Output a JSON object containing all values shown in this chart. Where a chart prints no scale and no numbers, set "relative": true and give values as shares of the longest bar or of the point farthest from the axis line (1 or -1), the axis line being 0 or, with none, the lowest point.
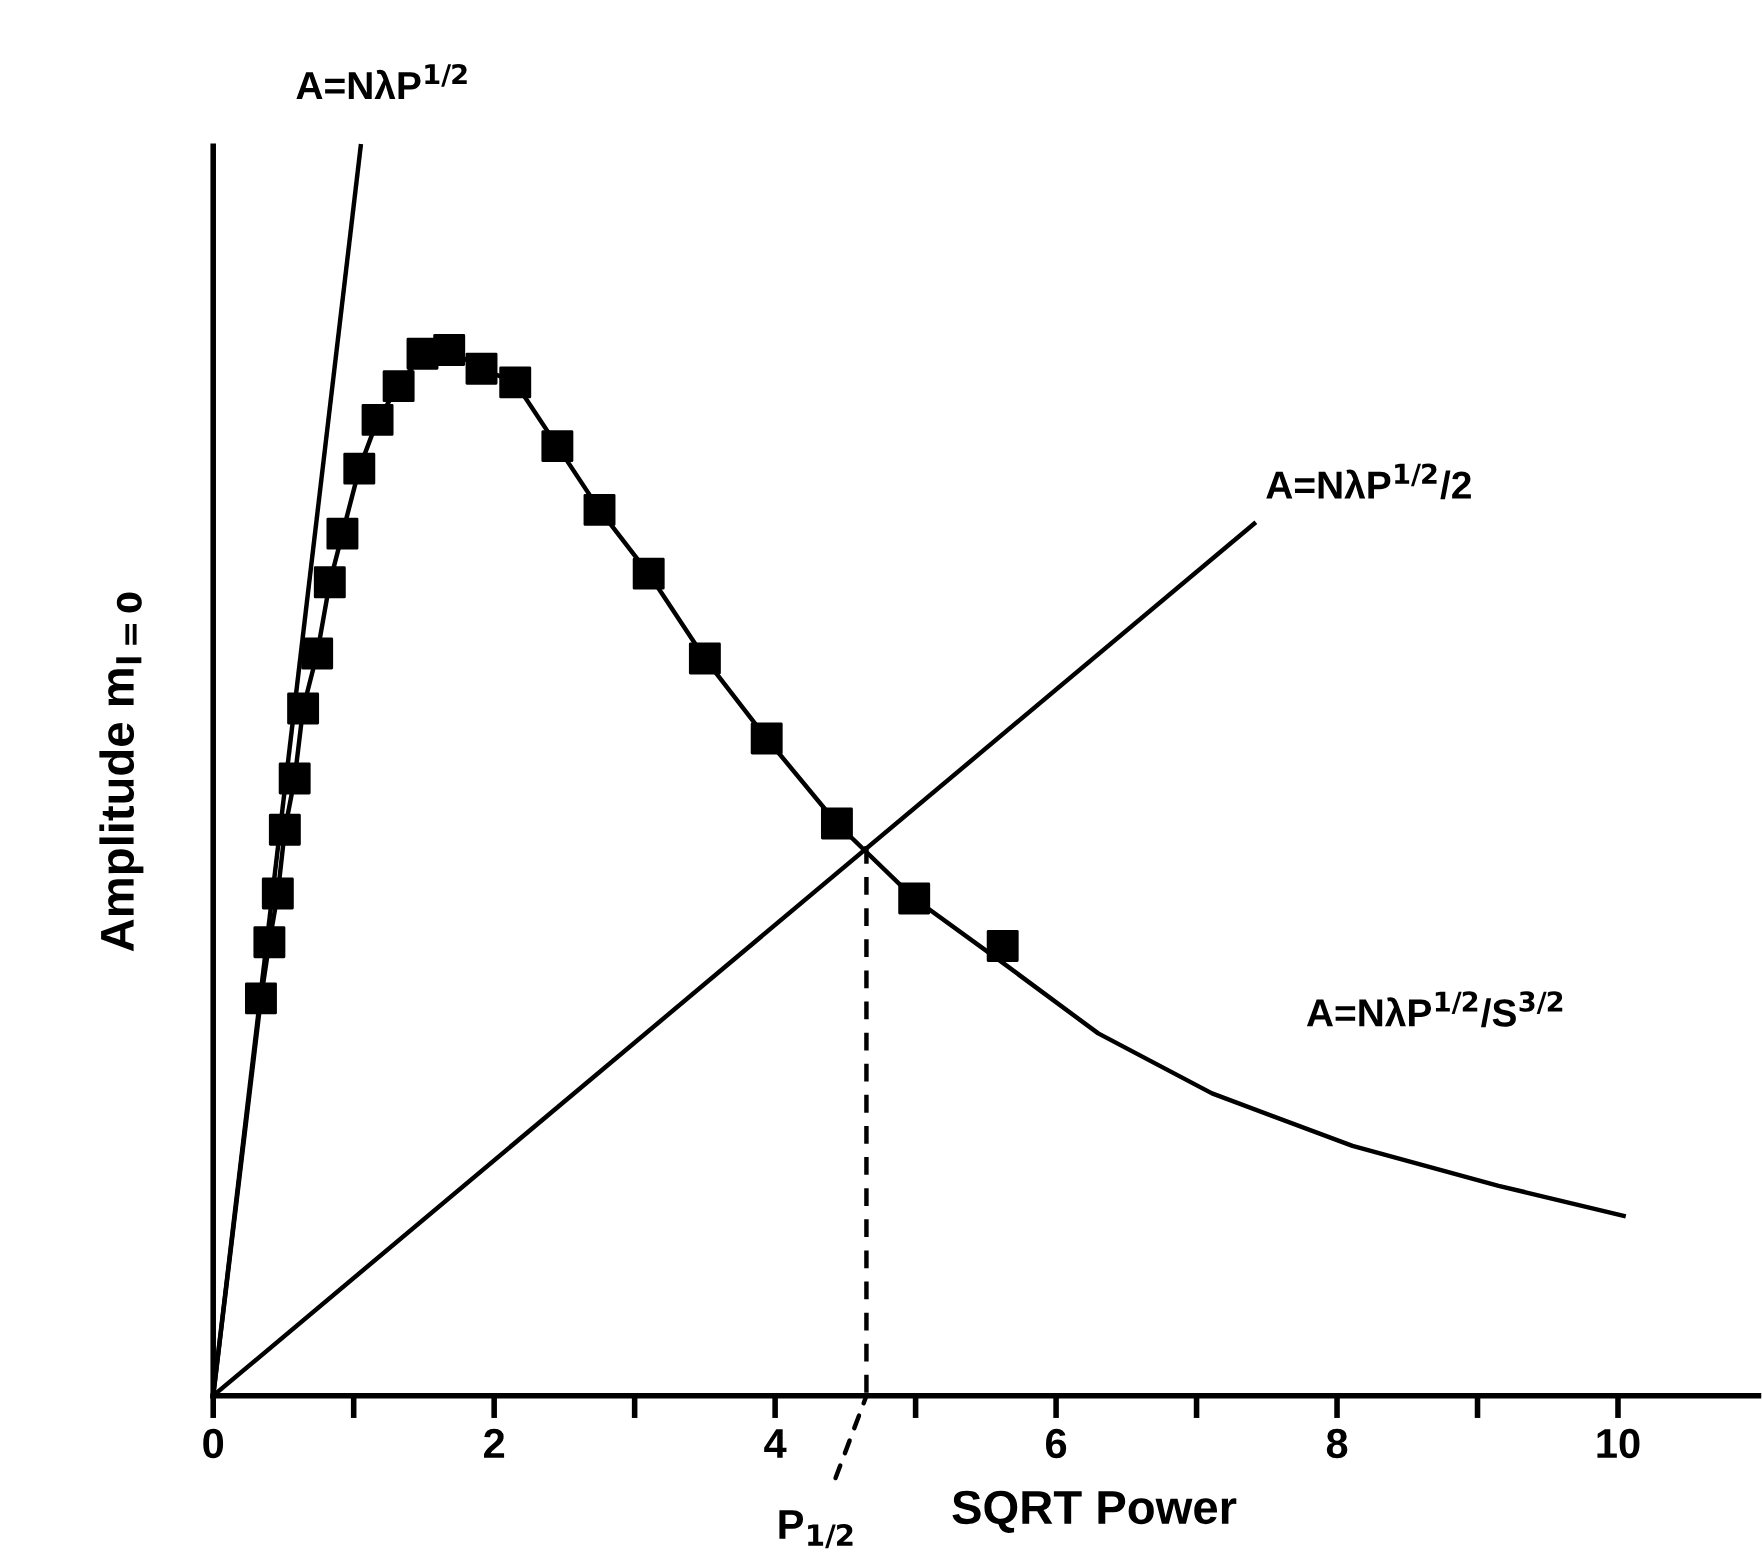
{
  "chart_data": {
    "type": "line",
    "relative": true,
    "xlabel": "SQRT Power",
    "ylabel": "Amplitude m$_{l=0}$",
    "xlim": [
      0,
      11
    ],
    "xticks": [
      0,
      {
        "value": 1,
        "label": null
      },
      2,
      {
        "value": 3,
        "label": null
      },
      4,
      {
        "value": 5,
        "label": null
      },
      6,
      {
        "value": 7,
        "label": null
      },
      8,
      {
        "value": 9,
        "label": null
      },
      10
    ],
    "tick_labels": "x",
    "grid": false,
    "legend": false,
    "series": [
      {
        "name": "A=NλP$^{1/2}$",
        "color": "#000000",
        "marker": "none",
        "line_style": "solid",
        "x": [
          0,
          1.05
        ],
        "values": [
          0,
          1.0
        ]
      },
      {
        "name": "A=NλP$^{1/2}$/2",
        "color": "#000000",
        "marker": "none",
        "line_style": "solid",
        "x": [
          0,
          7.41
        ],
        "values": [
          0,
          0.698
        ]
      },
      {
        "name": "A=NλP$^{1/2}$/S$^{3/2}$",
        "color": "#000000",
        "marker": "none",
        "line_style": "solid",
        "x": [
          0,
          0.34,
          0.4,
          0.46,
          0.51,
          0.58,
          0.64,
          0.74,
          0.83,
          0.92,
          1.04,
          1.17,
          1.32,
          1.49,
          1.68,
          1.91,
          2.15,
          2.45,
          2.75,
          3.1,
          3.5,
          3.94,
          4.44,
          4.99,
          5.59,
          6.3,
          7.11,
          8.11,
          9.15,
          10.04
        ],
        "values": [
          0,
          0.318,
          0.363,
          0.402,
          0.453,
          0.494,
          0.55,
          0.594,
          0.651,
          0.69,
          0.742,
          0.781,
          0.808,
          0.834,
          0.837,
          0.822,
          0.811,
          0.76,
          0.709,
          0.658,
          0.59,
          0.526,
          0.458,
          0.398,
          0.349,
          0.29,
          0.242,
          0.2,
          0.168,
          0.144
        ]
      },
      {
        "type": "scatter",
        "color": "#000000",
        "marker": "square",
        "x": [
          0.34,
          0.4,
          0.46,
          0.51,
          0.58,
          0.64,
          0.74,
          0.83,
          0.92,
          1.04,
          1.17,
          1.32,
          1.49,
          1.68,
          1.91,
          2.15,
          2.45,
          2.75,
          3.1,
          3.5,
          3.94,
          4.44,
          4.99,
          5.62
        ],
        "values": [
          0.318,
          0.363,
          0.402,
          0.453,
          0.494,
          0.55,
          0.594,
          0.651,
          0.69,
          0.742,
          0.781,
          0.808,
          0.834,
          0.837,
          0.822,
          0.811,
          0.76,
          0.709,
          0.658,
          0.59,
          0.526,
          0.458,
          0.398,
          0.36
        ]
      },
      {
        "color": "#000000",
        "marker": "none",
        "line_style": "dashed",
        "x": [
          4.65,
          4.65
        ],
        "values": [
          0.44,
          0
        ]
      }
    ],
    "annotations": [
      {
        "text": "P$_{1/2}$",
        "x": 4.65,
        "y": 0
      }
    ]
  }
}
